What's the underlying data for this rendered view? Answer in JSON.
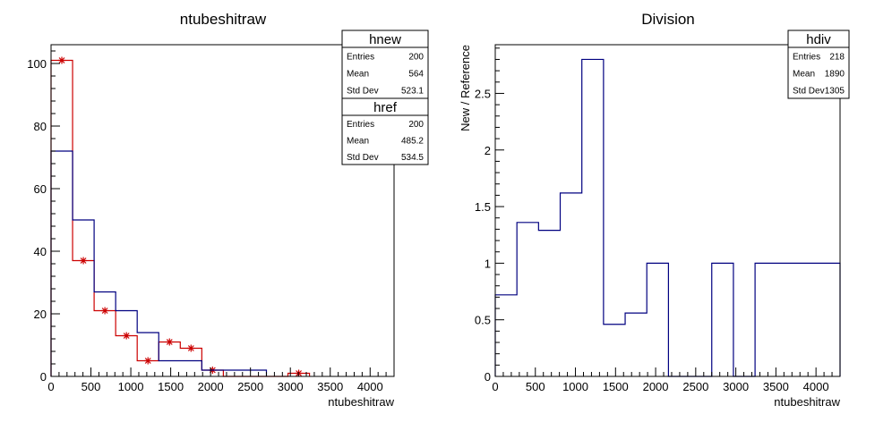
{
  "chart_data": [
    {
      "type": "histogram",
      "title": "ntubeshitraw",
      "xlabel": "ntubeshitraw",
      "ylabel": "",
      "xlim": [
        0,
        4300
      ],
      "ylim": [
        0,
        106
      ],
      "xticks": [
        0,
        500,
        1000,
        1500,
        2000,
        2500,
        3000,
        3500,
        4000
      ],
      "yticks": [
        0,
        20,
        40,
        60,
        80,
        100
      ],
      "series": [
        {
          "name": "hnew",
          "color": "#cc0000",
          "marker": "star",
          "bin_edges": [
            0,
            270,
            540,
            810,
            1080,
            1350,
            1620,
            1890,
            2160,
            2430,
            2700,
            2970,
            3240
          ],
          "values": [
            101,
            37,
            21,
            13,
            5,
            11,
            9,
            2,
            0,
            0,
            0,
            1
          ]
        },
        {
          "name": "href",
          "color": "#000080",
          "bin_edges": [
            0,
            270,
            540,
            810,
            1080,
            1350,
            1620,
            1890,
            2160,
            2430,
            2700
          ],
          "values": [
            72,
            50,
            27,
            21,
            14,
            5,
            5,
            2,
            2,
            2
          ]
        }
      ],
      "stats": [
        {
          "title": "hnew",
          "rows": [
            [
              "Entries",
              "200"
            ],
            [
              "Mean",
              "564"
            ],
            [
              "Std Dev",
              "523.1"
            ]
          ]
        },
        {
          "title": "href",
          "rows": [
            [
              "Entries",
              "200"
            ],
            [
              "Mean",
              "485.2"
            ],
            [
              "Std Dev",
              "534.5"
            ]
          ]
        }
      ]
    },
    {
      "type": "histogram",
      "title": "Division",
      "xlabel": "ntubeshitraw",
      "ylabel": "New / Reference",
      "xlim": [
        0,
        4300
      ],
      "ylim": [
        0,
        2.93
      ],
      "xticks": [
        0,
        500,
        1000,
        1500,
        2000,
        2500,
        3000,
        3500,
        4000
      ],
      "yticks": [
        0,
        0.5,
        1,
        1.5,
        2,
        2.5
      ],
      "ytick_labels": [
        "0",
        "0.5",
        "1",
        "1.5",
        "2",
        "2.5"
      ],
      "series": [
        {
          "name": "hdiv",
          "color": "#000080",
          "bin_edges": [
            0,
            270,
            540,
            810,
            1080,
            1350,
            1620,
            1890,
            2160,
            2430,
            2700,
            2970,
            3240,
            4300
          ],
          "values": [
            0.72,
            1.36,
            1.29,
            1.62,
            2.8,
            0.46,
            0.56,
            1.0,
            0,
            0,
            1.0,
            0,
            1.0
          ]
        }
      ],
      "stats": [
        {
          "title": "hdiv",
          "rows": [
            [
              "Entries",
              "218"
            ],
            [
              "Mean",
              "1890"
            ],
            [
              "Std Dev",
              "1305"
            ]
          ]
        }
      ]
    }
  ]
}
